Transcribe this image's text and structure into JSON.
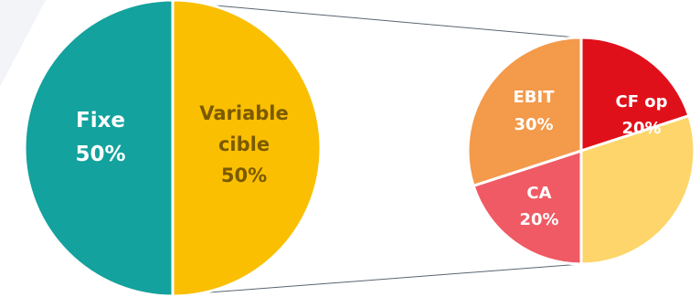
{
  "chart_data": [
    {
      "type": "pie",
      "slices": [
        {
          "label": "Fixe",
          "value": 50,
          "value_label": "50%",
          "color": "#13A29D"
        },
        {
          "label": "Variable cible",
          "value": 50,
          "value_label": "50%",
          "color": "#FABF00"
        }
      ]
    },
    {
      "type": "pie",
      "slices": [
        {
          "label": "CF op",
          "value": 20,
          "value_label": "20%",
          "color": "#E0101A"
        },
        {
          "label": "",
          "value": 30,
          "value_label": "",
          "color": "#FDD56A"
        },
        {
          "label": "CA",
          "value": 20,
          "value_label": "20%",
          "color": "#F05A64"
        },
        {
          "label": "EBIT",
          "value": 30,
          "value_label": "30%",
          "color": "#F39A4B"
        }
      ]
    }
  ],
  "colors": {
    "fixe_text": "#FFFFFF",
    "variable_text": "#7A5A00",
    "sub_text": "#FFFFFF",
    "connector": "#5A6570",
    "background_accent": "#F2F4F8"
  }
}
